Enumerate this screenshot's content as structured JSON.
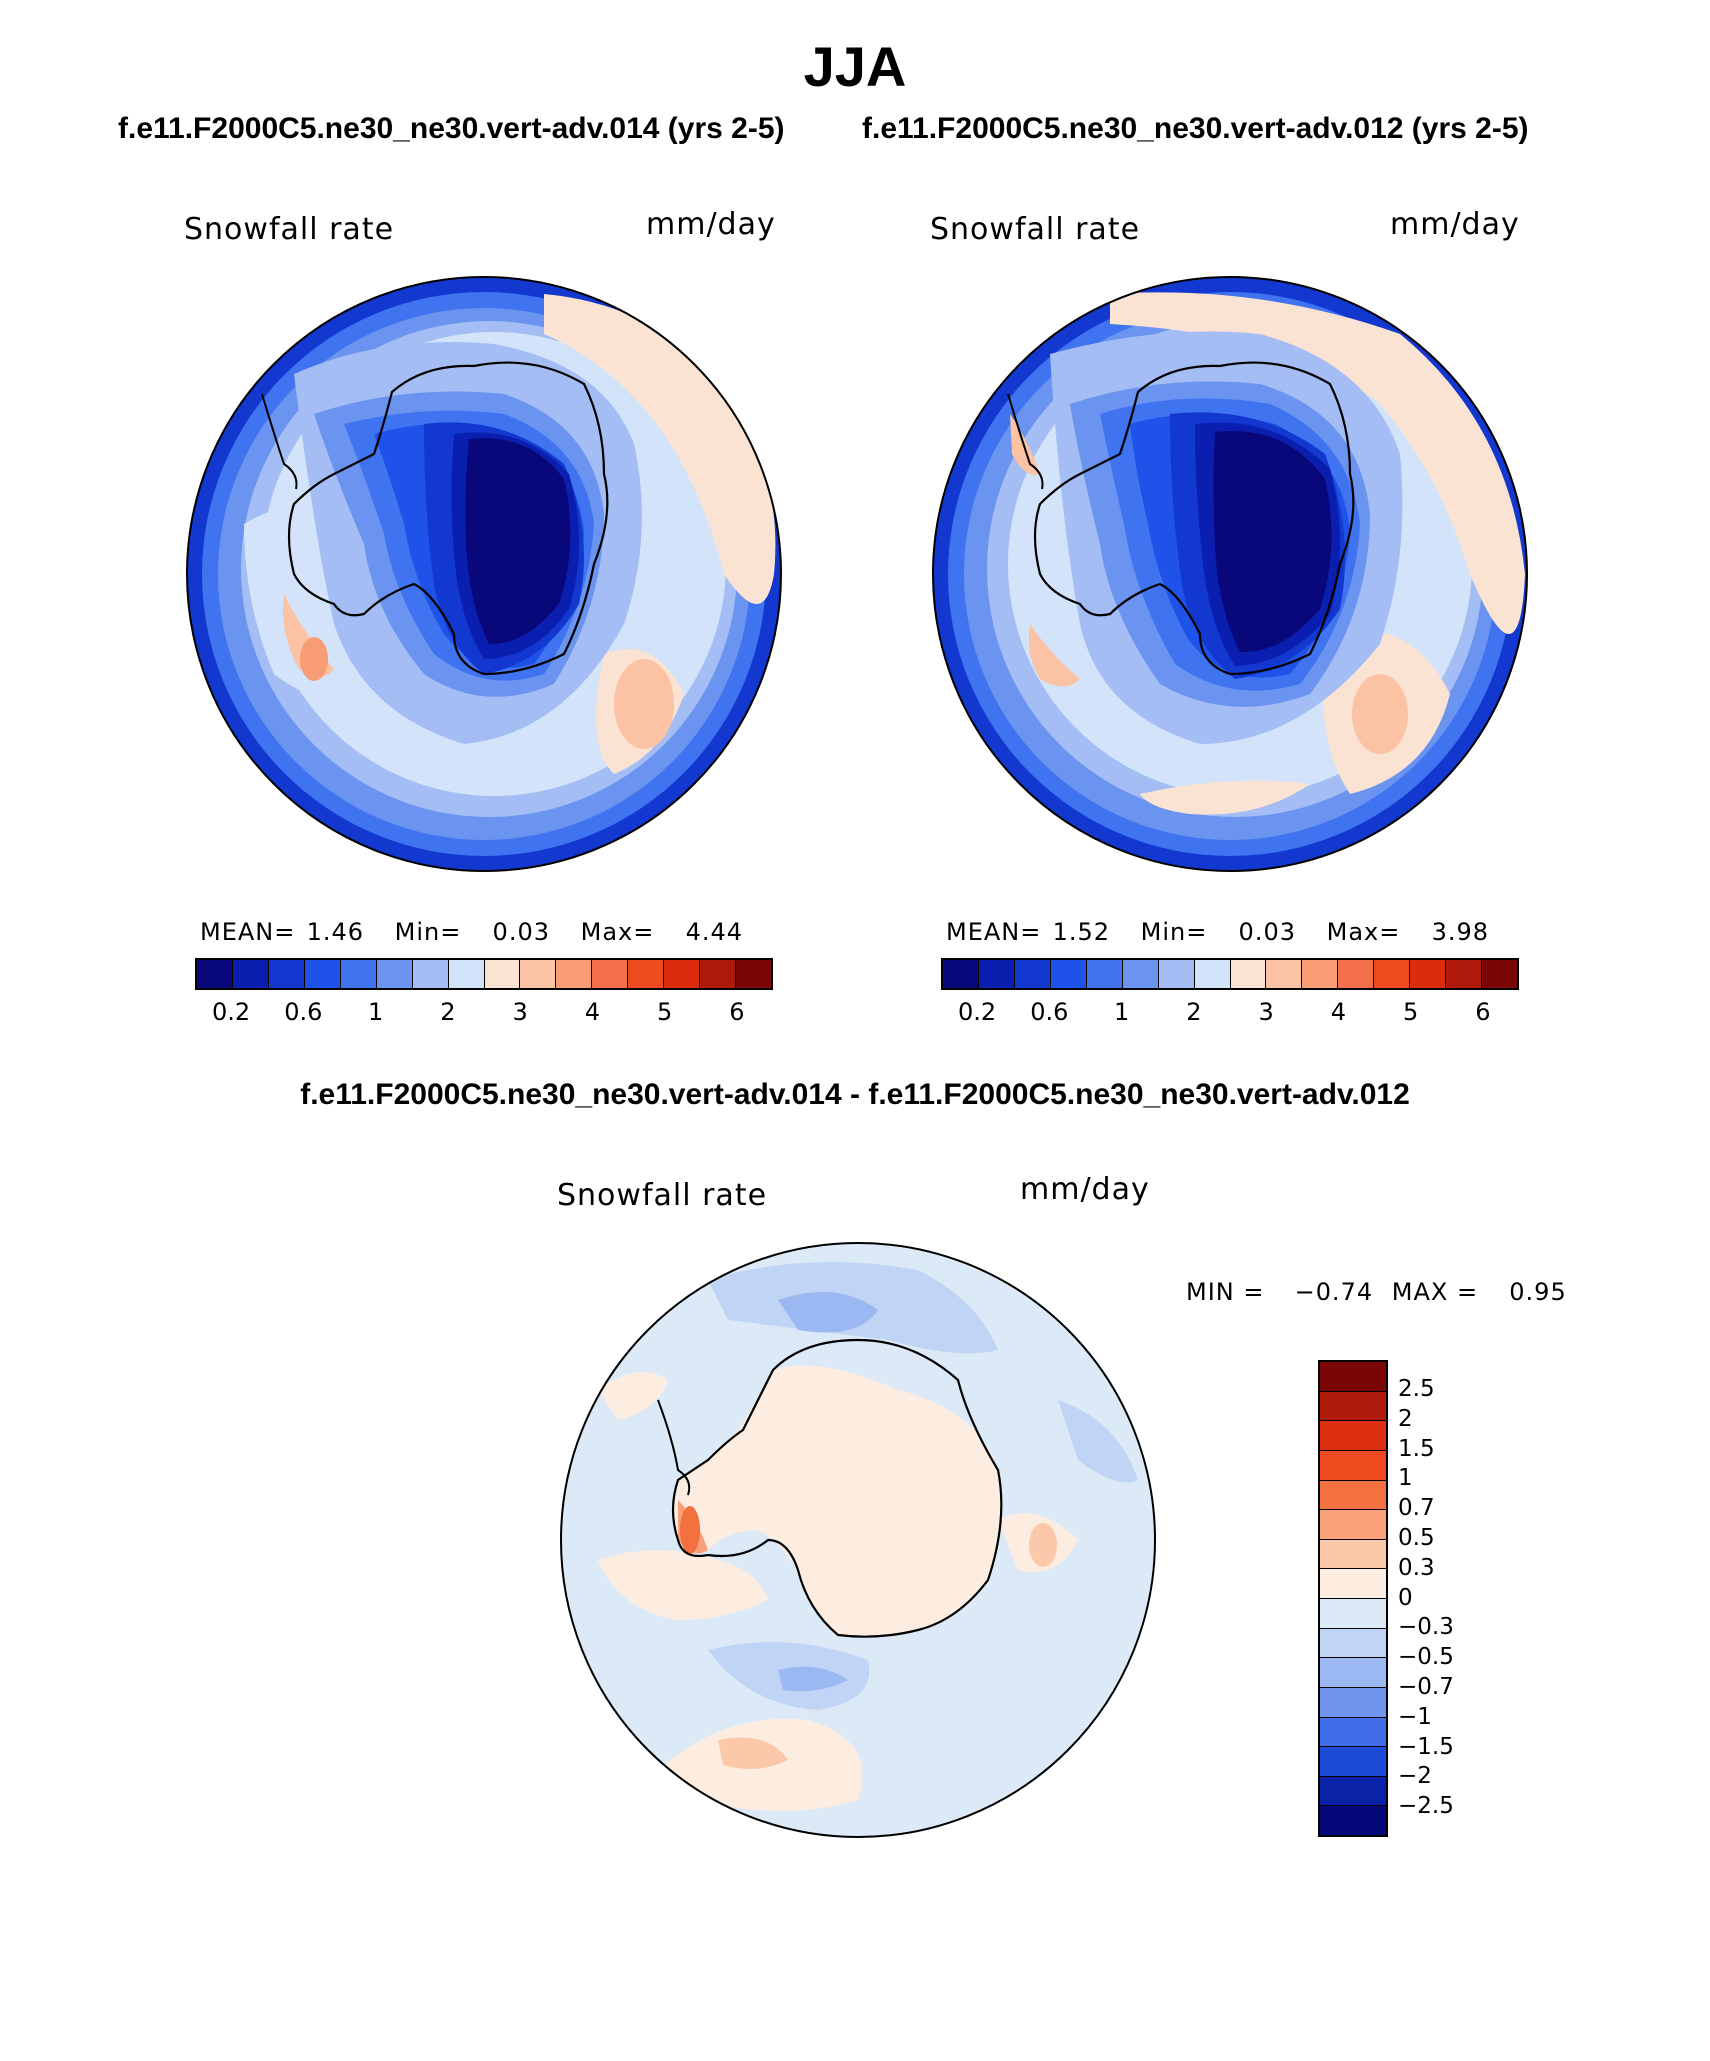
{
  "season": "JJA",
  "panels": [
    {
      "case_title": "f.e11.F2000C5.ne30_ne30.vert-adv.014 (yrs 2-5)",
      "variable": "Snowfall rate",
      "units": "mm/day",
      "stats": {
        "mean_label": "MEAN=",
        "mean": "1.46",
        "min_label": "Min=",
        "min": "0.03",
        "max_label": "Max=",
        "max": "4.44"
      }
    },
    {
      "case_title": "f.e11.F2000C5.ne30_ne30.vert-adv.012 (yrs 2-5)",
      "variable": "Snowfall rate",
      "units": "mm/day",
      "stats": {
        "mean_label": "MEAN=",
        "mean": "1.52",
        "min_label": "Min=",
        "min": "0.03",
        "max_label": "Max=",
        "max": "3.98"
      }
    }
  ],
  "colorbar": {
    "ticks": [
      "0.2",
      "0.6",
      "1",
      "2",
      "3",
      "4",
      "5",
      "6"
    ],
    "colors": [
      "#08087a",
      "#0a1fb0",
      "#1238d0",
      "#1f52e8",
      "#3f73ef",
      "#6b94f0",
      "#a4bdf4",
      "#d3e4fa",
      "#fbe3d3",
      "#fbc2a4",
      "#f79c74",
      "#f4704a",
      "#ee4a1f",
      "#dc2c10",
      "#b01a0a",
      "#7a0606"
    ]
  },
  "difference": {
    "title": "f.e11.F2000C5.ne30_ne30.vert-adv.014 - f.e11.F2000C5.ne30_ne30.vert-adv.012",
    "variable": "Snowfall rate",
    "units": "mm/day",
    "stats": {
      "min_label": "MIN =",
      "min": "-0.74",
      "max_label": "MAX =",
      "max": "0.95"
    },
    "colorbar": {
      "ticks": [
        "2.5",
        "2",
        "1.5",
        "1",
        "0.7",
        "0.5",
        "0.3",
        "0",
        "-0.3",
        "-0.5",
        "-0.7",
        "-1",
        "-1.5",
        "-2",
        "-2.5"
      ],
      "colors": [
        "#7a0606",
        "#b01a0a",
        "#dc3010",
        "#ef4a1f",
        "#f3703f",
        "#f7a07a",
        "#fbc8aa",
        "#fdece0",
        "#dceaf8",
        "#c0d4f5",
        "#9cb8f2",
        "#6f95ef",
        "#3f6ee8",
        "#1d4ad6",
        "#0a22a8",
        "#06087a"
      ]
    }
  }
}
